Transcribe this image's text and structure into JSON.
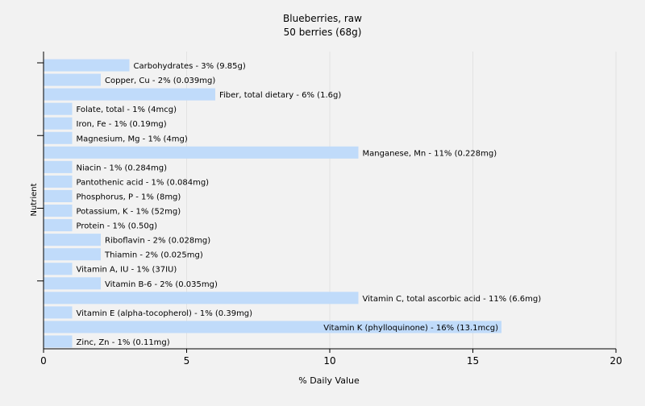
{
  "chart_data": {
    "type": "bar",
    "orientation": "horizontal",
    "title": "Blueberries, raw",
    "subtitle": "50 berries (68g)",
    "xlabel": "% Daily Value",
    "ylabel": "Nutrient",
    "xlim": [
      0,
      20
    ],
    "xticks": [
      0,
      5,
      10,
      15,
      20
    ],
    "grid": true,
    "categories": [
      "Carbohydrates",
      "Copper, Cu",
      "Fiber, total dietary",
      "Folate, total",
      "Iron, Fe",
      "Magnesium, Mg",
      "Manganese, Mn",
      "Niacin",
      "Pantothenic acid",
      "Phosphorus, P",
      "Potassium, K",
      "Protein",
      "Riboflavin",
      "Thiamin",
      "Vitamin A, IU",
      "Vitamin B-6",
      "Vitamin C, total ascorbic acid",
      "Vitamin E (alpha-tocopherol)",
      "Vitamin K (phylloquinone)",
      "Zinc, Zn"
    ],
    "values": [
      3,
      2,
      6,
      1,
      1,
      1,
      11,
      1,
      1,
      1,
      1,
      1,
      2,
      2,
      1,
      2,
      11,
      1,
      16,
      1
    ],
    "labels": [
      "Carbohydrates - 3% (9.85g)",
      "Copper, Cu - 2% (0.039mg)",
      "Fiber, total dietary - 6% (1.6g)",
      "Folate, total - 1% (4mcg)",
      "Iron, Fe - 1% (0.19mg)",
      "Magnesium, Mg - 1% (4mg)",
      "Manganese, Mn - 11% (0.228mg)",
      "Niacin - 1% (0.284mg)",
      "Pantothenic acid - 1% (0.084mg)",
      "Phosphorus, P - 1% (8mg)",
      "Potassium, K - 1% (52mg)",
      "Protein - 1% (0.50g)",
      "Riboflavin - 2% (0.028mg)",
      "Thiamin - 2% (0.025mg)",
      "Vitamin A, IU - 1% (37IU)",
      "Vitamin B-6 - 2% (0.035mg)",
      "Vitamin C, total ascorbic acid - 11% (6.6mg)",
      "Vitamin E (alpha-tocopherol) - 1% (0.39mg)",
      "Vitamin K (phylloquinone) - 16% (13.1mcg)",
      "Zinc, Zn - 1% (0.11mg)"
    ],
    "bar_color": "#c0dbfa",
    "background_color": "#f2f2f2",
    "grid_color": "#e2e2e2",
    "axis_color": "#000000"
  }
}
